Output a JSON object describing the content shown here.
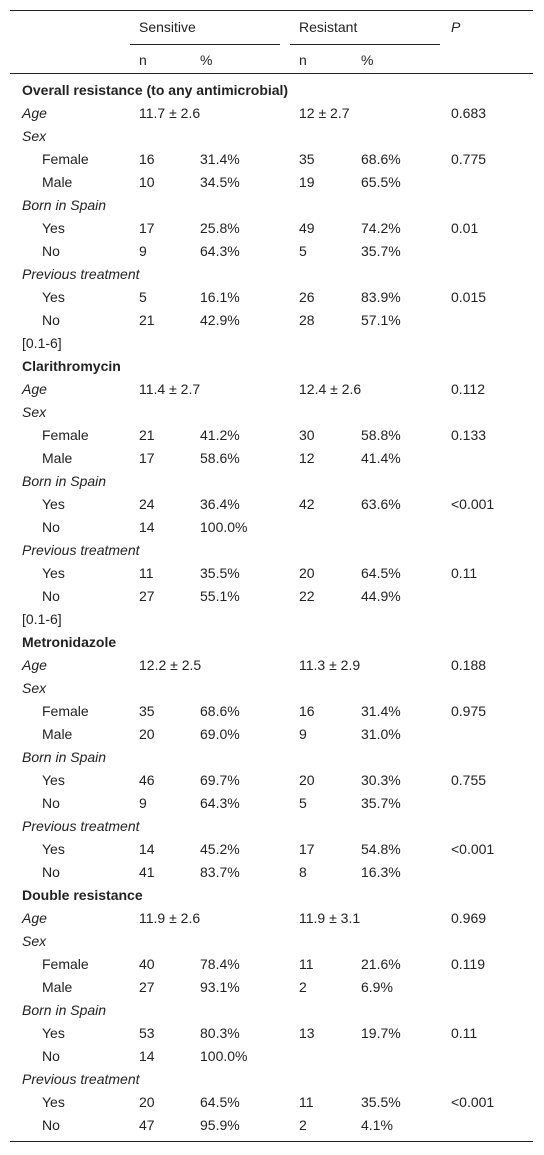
{
  "header": {
    "columns": [
      "Sensitive",
      "Resistant",
      "P"
    ],
    "subcolumns": [
      "n",
      "%",
      "n",
      "%"
    ]
  },
  "sections": [
    {
      "title": "Overall resistance (to any antimicrobial)",
      "age": [
        "Age",
        "11.7 ± 2.6",
        "12 ± 2.7",
        "0.683"
      ],
      "groups": [
        {
          "label": "Sex",
          "rows": [
            [
              "Female",
              "16",
              "31.4%",
              "35",
              "68.6%",
              "0.775"
            ],
            [
              "Male",
              "10",
              "34.5%",
              "19",
              "65.5%"
            ]
          ]
        },
        {
          "label": "Born in Spain",
          "rows": [
            [
              "Yes",
              "17",
              "25.8%",
              "49",
              "74.2%",
              "0.01"
            ],
            [
              "No",
              "9",
              "64.3%",
              "5",
              "35.7%"
            ]
          ]
        },
        {
          "label": "Previous treatment",
          "rows": [
            [
              "Yes",
              "5",
              "16.1%",
              "26",
              "83.9%",
              "0.015"
            ],
            [
              "No",
              "21",
              "42.9%",
              "28",
              "57.1%"
            ]
          ]
        }
      ],
      "note": "[0.1-6]"
    },
    {
      "title": "Clarithromycin",
      "age": [
        "Age",
        "11.4 ± 2.7",
        "12.4 ± 2.6",
        "0.112"
      ],
      "groups": [
        {
          "label": "Sex",
          "rows": [
            [
              "Female",
              "21",
              "41.2%",
              "30",
              "58.8%",
              "0.133"
            ],
            [
              "Male",
              "17",
              "58.6%",
              "12",
              "41.4%"
            ]
          ]
        },
        {
          "label": "Born in Spain",
          "rows": [
            [
              "Yes",
              "24",
              "36.4%",
              "42",
              "63.6%",
              "<0.001"
            ],
            [
              "No",
              "14",
              "100.0%"
            ]
          ]
        },
        {
          "label": "Previous treatment",
          "rows": [
            [
              "Yes",
              "11",
              "35.5%",
              "20",
              "64.5%",
              "0.11"
            ],
            [
              "No",
              "27",
              "55.1%",
              "22",
              "44.9%"
            ]
          ]
        }
      ],
      "note": "[0.1-6]"
    },
    {
      "title": "Metronidazole",
      "age": [
        "Age",
        "12.2 ± 2.5",
        "11.3 ± 2.9",
        "0.188"
      ],
      "groups": [
        {
          "label": "Sex",
          "rows": [
            [
              "Female",
              "35",
              "68.6%",
              "16",
              "31.4%",
              "0.975"
            ],
            [
              "Male",
              "20",
              "69.0%",
              "9",
              "31.0%"
            ]
          ]
        },
        {
          "label": "Born in Spain",
          "rows": [
            [
              "Yes",
              "46",
              "69.7%",
              "20",
              "30.3%",
              "0.755"
            ],
            [
              "No",
              "9",
              "64.3%",
              "5",
              "35.7%"
            ]
          ]
        },
        {
          "label": "Previous treatment",
          "rows": [
            [
              "Yes",
              "14",
              "45.2%",
              "17",
              "54.8%",
              "<0.001"
            ],
            [
              "No",
              "41",
              "83.7%",
              "8",
              "16.3%"
            ]
          ]
        }
      ]
    },
    {
      "title": "Double resistance",
      "age": [
        "Age",
        "11.9 ± 2.6",
        "11.9 ± 3.1",
        "0.969"
      ],
      "groups": [
        {
          "label": "Sex",
          "rows": [
            [
              "Female",
              "40",
              "78.4%",
              "11",
              "21.6%",
              "0.119"
            ],
            [
              "Male",
              "27",
              "93.1%",
              "2",
              "6.9%"
            ]
          ]
        },
        {
          "label": "Born in Spain",
          "rows": [
            [
              "Yes",
              "53",
              "80.3%",
              "13",
              "19.7%",
              "0.11"
            ],
            [
              "No",
              "14",
              "100.0%"
            ]
          ]
        },
        {
          "label": "Previous treatment",
          "rows": [
            [
              "Yes",
              "20",
              "64.5%",
              "11",
              "35.5%",
              "<0.001"
            ],
            [
              "No",
              "47",
              "95.9%",
              "2",
              "4.1%"
            ]
          ]
        }
      ]
    }
  ]
}
